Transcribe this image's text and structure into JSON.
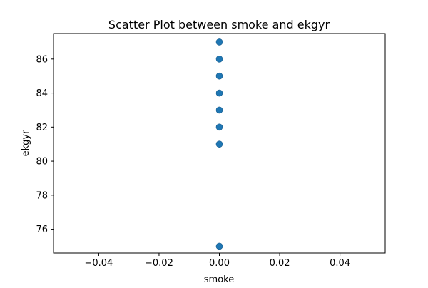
{
  "chart_data": {
    "type": "scatter",
    "title": "Scatter Plot between smoke and ekgyr",
    "xlabel": "smoke",
    "ylabel": "ekgyr",
    "xlim": [
      -0.055,
      0.055
    ],
    "ylim": [
      74.6,
      87.5
    ],
    "xticks": [
      -0.04,
      -0.02,
      0.0,
      0.02,
      0.04
    ],
    "xtick_labels": [
      "−0.04",
      "−0.02",
      "0.00",
      "0.02",
      "0.04"
    ],
    "yticks": [
      76,
      78,
      80,
      82,
      84,
      86
    ],
    "ytick_labels": [
      "76",
      "78",
      "80",
      "82",
      "84",
      "86"
    ],
    "grid": false,
    "marker_color": "#1f77b4",
    "points": [
      {
        "x": 0,
        "y": 87
      },
      {
        "x": 0,
        "y": 86
      },
      {
        "x": 0,
        "y": 85
      },
      {
        "x": 0,
        "y": 84
      },
      {
        "x": 0,
        "y": 83
      },
      {
        "x": 0,
        "y": 82
      },
      {
        "x": 0,
        "y": 81
      },
      {
        "x": 0,
        "y": 75
      }
    ]
  }
}
